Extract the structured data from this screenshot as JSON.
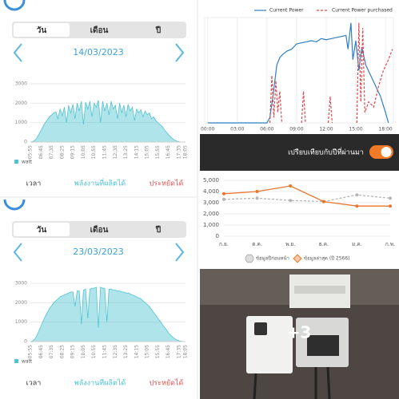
{
  "screens": [
    {
      "tabs": [
        "วัน",
        "เดือน",
        "ปี"
      ],
      "date": "14/03/2023",
      "nav": [
        "เวลา",
        "พลังงานที่ผลิตได้",
        "ประหยัดได้"
      ]
    },
    {
      "tabs": [
        "วัน",
        "เดือน",
        "ปี"
      ],
      "date": "23/03/2023",
      "nav": [
        "เวลา",
        "พลังงานที่ผลิตได้",
        "ประหยัดได้"
      ]
    }
  ],
  "toggle": {
    "label": "เปรียบเทียบกับปีที่ผ่านมา"
  },
  "photo": {
    "badge": "+3"
  },
  "chart_data": [
    {
      "type": "area",
      "ylim": [
        0,
        3000
      ],
      "yticks": [
        0,
        1000,
        2000,
        3000
      ],
      "grid": true,
      "categories": [
        "05:55",
        null,
        null,
        null,
        null,
        "06:45",
        null,
        null,
        null,
        null,
        "07:35",
        null,
        null,
        null,
        null,
        "08:25",
        null,
        null,
        null,
        null,
        "09:15",
        null,
        null,
        null,
        null,
        "10:05",
        null,
        null,
        null,
        null,
        "10:55",
        null,
        null,
        null,
        null,
        "11:45",
        null,
        null,
        null,
        null,
        "12:35",
        null,
        null,
        null,
        null,
        "13:25",
        null,
        null,
        null,
        null,
        "14:15",
        null,
        null,
        null,
        null,
        "15:05",
        null,
        null,
        null,
        null,
        "15:55",
        null,
        null,
        null,
        null,
        "16:45",
        null,
        null,
        null,
        null,
        "17:35",
        null,
        null,
        "18:05"
      ],
      "series": [
        {
          "name": "watt",
          "color": "#4fc3d3",
          "values": [
            0,
            20,
            80,
            200,
            400,
            600,
            800,
            1000,
            1150,
            1300,
            1400,
            1500,
            1550,
            1200,
            1700,
            1350,
            1800,
            1000,
            1900,
            1500,
            1950,
            1200,
            2000,
            1600,
            2100,
            900,
            2050,
            1700,
            2100,
            1300,
            2000,
            1800,
            2150,
            1000,
            2100,
            1600,
            2000,
            1400,
            2100,
            1700,
            1900,
            1200,
            2000,
            1500,
            1900,
            1300,
            1950,
            1600,
            1800,
            1100,
            1700,
            1500,
            1650,
            1300,
            1600,
            1400,
            1500,
            1200,
            1300,
            1100,
            1000,
            900,
            800,
            650,
            500,
            380,
            260,
            160,
            90,
            40,
            15,
            5,
            0,
            0
          ]
        }
      ]
    },
    {
      "type": "area",
      "ylim": [
        0,
        3000
      ],
      "yticks": [
        0,
        1000,
        2000,
        3000
      ],
      "grid": true,
      "categories": [
        "05:55",
        null,
        null,
        null,
        null,
        "06:45",
        null,
        null,
        null,
        null,
        "07:35",
        null,
        null,
        null,
        null,
        "08:25",
        null,
        null,
        null,
        null,
        "09:15",
        null,
        null,
        null,
        null,
        "10:05",
        null,
        null,
        null,
        null,
        "10:55",
        null,
        null,
        null,
        null,
        "11:45",
        null,
        null,
        null,
        null,
        "12:35",
        null,
        null,
        null,
        null,
        "13:25",
        null,
        null,
        null,
        null,
        "14:15",
        null,
        null,
        null,
        null,
        "15:05",
        null,
        null,
        null,
        null,
        "15:55",
        null,
        null,
        null,
        null,
        "16:45",
        null,
        null,
        null,
        null,
        "17:35",
        null,
        null,
        "18:05"
      ],
      "series": [
        {
          "name": "watt",
          "color": "#4fc3d3",
          "values": [
            0,
            30,
            120,
            300,
            550,
            800,
            1050,
            1300,
            1500,
            1700,
            1850,
            2000,
            2100,
            2200,
            2300,
            2350,
            2400,
            2450,
            2500,
            2550,
            2550,
            1800,
            2600,
            2600,
            900,
            2650,
            2700,
            1200,
            2700,
            2750,
            2750,
            2800,
            700,
            2800,
            2750,
            2750,
            1000,
            2700,
            2700,
            2650,
            2650,
            2600,
            2600,
            2550,
            2550,
            2500,
            2500,
            2450,
            2400,
            2350,
            2300,
            2250,
            2200,
            2100,
            2000,
            1900,
            1800,
            1650,
            1500,
            1350,
            1200,
            1050,
            900,
            750,
            600,
            450,
            330,
            220,
            140,
            80,
            40,
            15,
            5,
            0
          ]
        }
      ]
    },
    {
      "type": "line",
      "xlim": [
        -0.3,
        18.8
      ],
      "ylim": [
        0,
        100
      ],
      "grid": true,
      "xticks": [
        {
          "value": 0,
          "label": "00:00"
        },
        {
          "value": 3,
          "label": "03:00"
        },
        {
          "value": 6,
          "label": "06:00"
        },
        {
          "value": 9,
          "label": "09:00"
        },
        {
          "value": 12,
          "label": "12:00"
        },
        {
          "value": 15,
          "label": "15:00"
        },
        {
          "value": 18,
          "label": "18:00"
        }
      ],
      "series": [
        {
          "name": "Current Power",
          "color": "#2f7fc1",
          "dash": false,
          "x": [
            0,
            6,
            6.3,
            6.6,
            7,
            7.3,
            7.6,
            8,
            8.5,
            9,
            9.5,
            10,
            10.5,
            11,
            11.5,
            12,
            12.5,
            13,
            13.5,
            14,
            14.2,
            14.5,
            14.7,
            15,
            15.3,
            15.6,
            16,
            16.5,
            17,
            17.5,
            18,
            18.3
          ],
          "values": [
            0,
            0,
            5,
            25,
            55,
            62,
            65,
            68,
            70,
            75,
            76,
            77,
            78,
            77,
            80,
            79,
            80,
            81,
            82,
            83,
            70,
            95,
            60,
            78,
            50,
            72,
            55,
            45,
            35,
            25,
            10,
            0
          ]
        },
        {
          "name": "Current Power purchased",
          "color": "#e0474c",
          "dash": true,
          "x": [
            6.3,
            6.5,
            6.7,
            6.9,
            7.1,
            7.3,
            7.5,
            null,
            9.5,
            9.7,
            9.9,
            null,
            12.2,
            12.4,
            12.6,
            null,
            15.1,
            15.3,
            15.5,
            15.7,
            15.9,
            16.3,
            16.8,
            17.3,
            17.8,
            18.3,
            18.7
          ],
          "values": [
            0,
            45,
            5,
            40,
            10,
            30,
            0,
            null,
            0,
            30,
            0,
            null,
            0,
            25,
            0,
            null,
            0,
            95,
            20,
            90,
            10,
            20,
            15,
            35,
            50,
            60,
            70
          ]
        }
      ]
    },
    {
      "type": "line",
      "ylim": [
        0,
        5000
      ],
      "grid": true,
      "yticks": [
        0,
        {
          "value": 1000,
          "label": "1,000"
        },
        {
          "value": 2000,
          "label": "2,000"
        },
        {
          "value": 3000,
          "label": "3,000"
        },
        {
          "value": 4000,
          "label": "4,000"
        },
        {
          "value": 5000,
          "label": "5,000"
        }
      ],
      "categories": [
        "ก.ย.",
        "ต.ค.",
        "พ.ย.",
        "ธ.ค.",
        "ม.ค.",
        "ก.พ."
      ],
      "series": [
        {
          "name": "ข้อมูลปีก่อนหน้า",
          "color": "#b5b5b5",
          "dash": true,
          "marker": "circle",
          "values": [
            3300,
            3400,
            3200,
            3100,
            3700,
            3400
          ]
        },
        {
          "name": "ข้อมูลล่าสุด (ปี 2566)",
          "color": "#e8772e",
          "dash": false,
          "marker": "diamond",
          "values": [
            3800,
            4000,
            4500,
            3100,
            2700,
            2700
          ]
        }
      ]
    }
  ]
}
